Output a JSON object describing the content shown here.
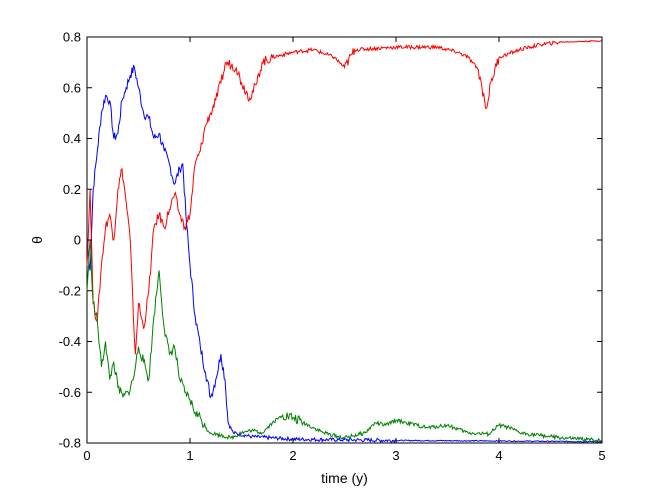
{
  "chart_data": {
    "type": "line",
    "title": "",
    "xlabel": "time (y)",
    "ylabel": "θ",
    "xlim": [
      0,
      5
    ],
    "ylim": [
      -0.8,
      0.8
    ],
    "grid": false,
    "legend": "none",
    "x_ticks": [
      "0",
      "1",
      "2",
      "3",
      "4",
      "5"
    ],
    "y_ticks": [
      "-0.8",
      "-0.6",
      "-0.4",
      "-0.2",
      "0",
      "0.2",
      "0.4",
      "0.6",
      "0.8"
    ],
    "series": [
      {
        "color": "#0000ff",
        "points": [
          [
            0,
            0.0
          ],
          [
            0.03,
            -0.12
          ],
          [
            0.06,
            0.2
          ],
          [
            0.1,
            0.35
          ],
          [
            0.14,
            0.5
          ],
          [
            0.18,
            0.57
          ],
          [
            0.22,
            0.55
          ],
          [
            0.26,
            0.4
          ],
          [
            0.3,
            0.42
          ],
          [
            0.34,
            0.55
          ],
          [
            0.38,
            0.6
          ],
          [
            0.42,
            0.65
          ],
          [
            0.46,
            0.68
          ],
          [
            0.5,
            0.6
          ],
          [
            0.55,
            0.5
          ],
          [
            0.6,
            0.48
          ],
          [
            0.65,
            0.4
          ],
          [
            0.7,
            0.42
          ],
          [
            0.75,
            0.35
          ],
          [
            0.8,
            0.3
          ],
          [
            0.85,
            0.22
          ],
          [
            0.9,
            0.28
          ],
          [
            0.93,
            0.3
          ],
          [
            0.96,
            0.1
          ],
          [
            1.0,
            -0.1
          ],
          [
            1.05,
            -0.3
          ],
          [
            1.1,
            -0.42
          ],
          [
            1.15,
            -0.52
          ],
          [
            1.2,
            -0.62
          ],
          [
            1.25,
            -0.55
          ],
          [
            1.3,
            -0.45
          ],
          [
            1.34,
            -0.55
          ],
          [
            1.37,
            -0.72
          ],
          [
            1.42,
            -0.76
          ],
          [
            1.6,
            -0.775
          ],
          [
            2.0,
            -0.785
          ],
          [
            3.0,
            -0.79
          ],
          [
            4.0,
            -0.792
          ],
          [
            5.0,
            -0.795
          ]
        ]
      },
      {
        "color": "#ff0000",
        "points": [
          [
            0,
            -0.1
          ],
          [
            0.03,
            0.2
          ],
          [
            0.06,
            -0.25
          ],
          [
            0.1,
            -0.32
          ],
          [
            0.14,
            -0.1
          ],
          [
            0.18,
            0.05
          ],
          [
            0.22,
            0.1
          ],
          [
            0.26,
            0.0
          ],
          [
            0.3,
            0.2
          ],
          [
            0.34,
            0.28
          ],
          [
            0.38,
            0.15
          ],
          [
            0.42,
            0.0
          ],
          [
            0.45,
            -0.3
          ],
          [
            0.47,
            -0.45
          ],
          [
            0.5,
            -0.25
          ],
          [
            0.55,
            -0.35
          ],
          [
            0.6,
            -0.2
          ],
          [
            0.65,
            0.05
          ],
          [
            0.7,
            0.1
          ],
          [
            0.75,
            0.05
          ],
          [
            0.8,
            0.12
          ],
          [
            0.85,
            0.18
          ],
          [
            0.9,
            0.1
          ],
          [
            0.95,
            0.05
          ],
          [
            1.0,
            0.1
          ],
          [
            1.05,
            0.3
          ],
          [
            1.1,
            0.35
          ],
          [
            1.15,
            0.45
          ],
          [
            1.2,
            0.5
          ],
          [
            1.25,
            0.55
          ],
          [
            1.3,
            0.62
          ],
          [
            1.35,
            0.7
          ],
          [
            1.45,
            0.68
          ],
          [
            1.5,
            0.62
          ],
          [
            1.58,
            0.56
          ],
          [
            1.65,
            0.62
          ],
          [
            1.7,
            0.7
          ],
          [
            1.8,
            0.72
          ],
          [
            2.0,
            0.74
          ],
          [
            2.2,
            0.75
          ],
          [
            2.4,
            0.72
          ],
          [
            2.5,
            0.68
          ],
          [
            2.6,
            0.75
          ],
          [
            3.0,
            0.76
          ],
          [
            3.4,
            0.76
          ],
          [
            3.6,
            0.74
          ],
          [
            3.7,
            0.72
          ],
          [
            3.8,
            0.67
          ],
          [
            3.86,
            0.55
          ],
          [
            3.88,
            0.52
          ],
          [
            3.92,
            0.62
          ],
          [
            4.0,
            0.72
          ],
          [
            4.2,
            0.75
          ],
          [
            4.4,
            0.77
          ],
          [
            4.6,
            0.78
          ],
          [
            5.0,
            0.785
          ]
        ]
      },
      {
        "color": "#008000",
        "points": [
          [
            0,
            -0.2
          ],
          [
            0.03,
            0.0
          ],
          [
            0.06,
            -0.25
          ],
          [
            0.1,
            -0.32
          ],
          [
            0.14,
            -0.5
          ],
          [
            0.18,
            -0.4
          ],
          [
            0.22,
            -0.55
          ],
          [
            0.26,
            -0.48
          ],
          [
            0.3,
            -0.58
          ],
          [
            0.35,
            -0.62
          ],
          [
            0.4,
            -0.6
          ],
          [
            0.45,
            -0.55
          ],
          [
            0.5,
            -0.42
          ],
          [
            0.55,
            -0.48
          ],
          [
            0.6,
            -0.55
          ],
          [
            0.65,
            -0.3
          ],
          [
            0.7,
            -0.12
          ],
          [
            0.75,
            -0.35
          ],
          [
            0.8,
            -0.45
          ],
          [
            0.85,
            -0.42
          ],
          [
            0.9,
            -0.55
          ],
          [
            0.95,
            -0.6
          ],
          [
            1.0,
            -0.63
          ],
          [
            1.05,
            -0.68
          ],
          [
            1.1,
            -0.7
          ],
          [
            1.15,
            -0.74
          ],
          [
            1.2,
            -0.76
          ],
          [
            1.3,
            -0.77
          ],
          [
            1.4,
            -0.78
          ],
          [
            1.5,
            -0.76
          ],
          [
            1.6,
            -0.75
          ],
          [
            1.7,
            -0.76
          ],
          [
            1.8,
            -0.72
          ],
          [
            1.9,
            -0.69
          ],
          [
            2.0,
            -0.7
          ],
          [
            2.1,
            -0.72
          ],
          [
            2.3,
            -0.76
          ],
          [
            2.5,
            -0.78
          ],
          [
            2.7,
            -0.76
          ],
          [
            2.8,
            -0.72
          ],
          [
            2.9,
            -0.73
          ],
          [
            3.0,
            -0.71
          ],
          [
            3.1,
            -0.72
          ],
          [
            3.3,
            -0.74
          ],
          [
            3.5,
            -0.73
          ],
          [
            3.7,
            -0.76
          ],
          [
            3.9,
            -0.765
          ],
          [
            4.0,
            -0.73
          ],
          [
            4.1,
            -0.74
          ],
          [
            4.2,
            -0.76
          ],
          [
            4.4,
            -0.77
          ],
          [
            4.6,
            -0.78
          ],
          [
            4.8,
            -0.785
          ],
          [
            5.0,
            -0.79
          ]
        ]
      }
    ]
  }
}
